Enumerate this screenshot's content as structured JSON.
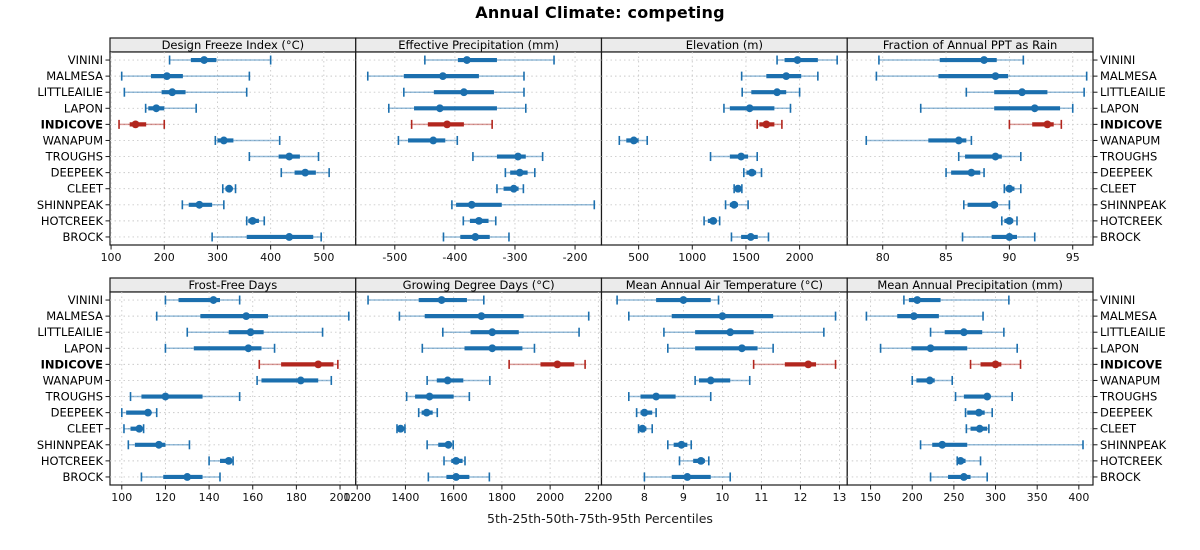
{
  "chart_data": {
    "type": "trellis-dotplot-percentiles",
    "title": "Annual Climate: competing",
    "caption": "5th-25th-50th-75th-95th Percentiles",
    "percentiles": [
      "5th",
      "25th",
      "50th",
      "75th",
      "95th"
    ],
    "legend_position": "none",
    "grid_layout": {
      "rows": 2,
      "cols": 4
    },
    "sites": [
      "VININI",
      "MALMESA",
      "LITTLEAILIE",
      "LAPON",
      "INDICOVE",
      "WANAPUM",
      "TROUGHS",
      "DEEPEEK",
      "CLEET",
      "SHINNPEAK",
      "HOTCREEK",
      "BROCK"
    ],
    "highlight_site": "INDICOVE",
    "colors": {
      "normal": "#1b6fae",
      "highlight": "#b2261e",
      "strip_bg": "#ebebeb",
      "border": "#1a1a1a",
      "grid": "#c9c9c9"
    },
    "panels": [
      {
        "title": "Design Freeze Index (°C)",
        "row": 0,
        "col": 0,
        "domain": [
          98,
          560
        ],
        "ticks": [
          100,
          200,
          300,
          400,
          500
        ],
        "values": [
          [
            210,
            250,
            275,
            298,
            400
          ],
          [
            120,
            175,
            205,
            235,
            360
          ],
          [
            125,
            195,
            215,
            240,
            355
          ],
          [
            165,
            170,
            185,
            200,
            260
          ],
          [
            115,
            135,
            146,
            166,
            200
          ],
          [
            296,
            300,
            312,
            330,
            417
          ],
          [
            360,
            415,
            435,
            455,
            490
          ],
          [
            420,
            445,
            465,
            485,
            510
          ],
          [
            310,
            315,
            322,
            328,
            334
          ],
          [
            234,
            246,
            266,
            290,
            312
          ],
          [
            355,
            358,
            366,
            378,
            388
          ],
          [
            290,
            355,
            435,
            480,
            495
          ]
        ]
      },
      {
        "title": "Effective Precipitation (mm)",
        "row": 0,
        "col": 1,
        "domain": [
          -565,
          -156
        ],
        "ticks": [
          -500,
          -400,
          -300,
          -200
        ],
        "values": [
          [
            -450,
            -395,
            -380,
            -330,
            -235
          ],
          [
            -545,
            -485,
            -420,
            -360,
            -285
          ],
          [
            -485,
            -435,
            -385,
            -335,
            -285
          ],
          [
            -510,
            -468,
            -425,
            -330,
            -282
          ],
          [
            -472,
            -445,
            -413,
            -385,
            -338
          ],
          [
            -494,
            -478,
            -436,
            -416,
            -396
          ],
          [
            -370,
            -330,
            -295,
            -282,
            -254
          ],
          [
            -316,
            -308,
            -292,
            -279,
            -267
          ],
          [
            -330,
            -319,
            -302,
            -294,
            -286
          ],
          [
            -405,
            -398,
            -372,
            -322,
            -168
          ],
          [
            -386,
            -375,
            -360,
            -344,
            -332
          ],
          [
            -419,
            -391,
            -366,
            -342,
            -310
          ]
        ]
      },
      {
        "title": "Elevation (m)",
        "row": 0,
        "col": 2,
        "domain": [
          154,
          2444
        ],
        "ticks": [
          500,
          1000,
          1500,
          2000
        ],
        "values": [
          [
            1790,
            1860,
            1980,
            2170,
            2350
          ],
          [
            1460,
            1690,
            1875,
            2015,
            2170
          ],
          [
            1465,
            1550,
            1790,
            1875,
            2000
          ],
          [
            1295,
            1350,
            1535,
            1765,
            1915
          ],
          [
            1605,
            1625,
            1690,
            1765,
            1835
          ],
          [
            320,
            385,
            455,
            500,
            580
          ],
          [
            1170,
            1350,
            1455,
            1520,
            1605
          ],
          [
            1480,
            1505,
            1555,
            1595,
            1645
          ],
          [
            1390,
            1402,
            1426,
            1450,
            1462
          ],
          [
            1310,
            1350,
            1390,
            1425,
            1520
          ],
          [
            1110,
            1145,
            1195,
            1215,
            1255
          ],
          [
            1365,
            1455,
            1545,
            1610,
            1710
          ]
        ]
      },
      {
        "title": "Fraction of Annual PPT as Rain",
        "row": 0,
        "col": 3,
        "domain": [
          77.2,
          96.6
        ],
        "ticks": [
          80,
          85,
          90,
          95
        ],
        "values": [
          [
            79.7,
            84.5,
            88,
            89,
            91.1
          ],
          [
            79.5,
            84.4,
            88.9,
            89.9,
            96.1
          ],
          [
            86.6,
            88.8,
            91,
            93,
            95.9
          ],
          [
            83,
            88.8,
            92,
            94,
            95
          ],
          [
            90,
            91.8,
            93,
            93.5,
            94.1
          ],
          [
            78.7,
            83.6,
            86,
            86.6,
            87
          ],
          [
            86,
            86.5,
            88.9,
            89.4,
            90.9
          ],
          [
            85,
            85.4,
            87,
            87.7,
            88
          ],
          [
            89.6,
            89.7,
            90,
            90.4,
            90.9
          ],
          [
            86.4,
            86.7,
            88.8,
            89.1,
            90
          ],
          [
            89.4,
            89.6,
            90,
            90.3,
            90.6
          ],
          [
            86.3,
            88.6,
            90,
            90.6,
            92
          ]
        ]
      },
      {
        "title": "Frost-Free Days",
        "row": 1,
        "col": 0,
        "domain": [
          94.6,
          207.2
        ],
        "ticks": [
          100,
          120,
          140,
          160,
          180,
          200
        ],
        "values": [
          [
            120,
            126,
            142,
            145,
            154
          ],
          [
            116,
            136,
            157,
            167,
            204
          ],
          [
            130,
            149,
            159,
            165,
            192
          ],
          [
            120,
            133,
            158,
            164,
            170
          ],
          [
            163,
            173,
            190,
            197,
            199
          ],
          [
            162,
            164,
            182,
            190,
            196
          ],
          [
            104,
            109,
            120,
            137,
            154
          ],
          [
            100,
            102,
            112,
            113,
            116
          ],
          [
            101,
            104,
            108,
            109,
            110
          ],
          [
            103,
            106,
            117,
            120,
            131
          ],
          [
            140,
            145,
            149,
            150,
            151
          ],
          [
            109,
            119,
            130,
            137,
            145
          ]
        ]
      },
      {
        "title": "Growing Degree Days (°C)",
        "row": 1,
        "col": 1,
        "domain": [
          1194,
          2213
        ],
        "ticks": [
          1200,
          1400,
          1600,
          1800,
          2000,
          2200
        ],
        "values": [
          [
            1245,
            1455,
            1550,
            1655,
            1725
          ],
          [
            1375,
            1480,
            1715,
            1890,
            2160
          ],
          [
            1555,
            1670,
            1760,
            1870,
            2120
          ],
          [
            1470,
            1645,
            1760,
            1885,
            1935
          ],
          [
            1830,
            1960,
            2030,
            2100,
            2145
          ],
          [
            1490,
            1530,
            1575,
            1640,
            1750
          ],
          [
            1405,
            1440,
            1500,
            1600,
            1665
          ],
          [
            1455,
            1467,
            1488,
            1513,
            1532
          ],
          [
            1365,
            1372,
            1380,
            1390,
            1398
          ],
          [
            1490,
            1536,
            1578,
            1588,
            1598
          ],
          [
            1560,
            1590,
            1610,
            1637,
            1647
          ],
          [
            1495,
            1570,
            1610,
            1665,
            1748
          ]
        ]
      },
      {
        "title": "Mean Annual Air Temperature (°C)",
        "row": 1,
        "col": 2,
        "domain": [
          6.9,
          13.2
        ],
        "ticks": [
          8,
          9,
          10,
          11,
          12,
          13
        ],
        "values": [
          [
            7.3,
            8.3,
            9.0,
            9.7,
            9.9
          ],
          [
            7.6,
            8.7,
            10.0,
            11.3,
            12.9
          ],
          [
            8.5,
            9.3,
            10.2,
            10.8,
            12.6
          ],
          [
            8.6,
            9.3,
            10.5,
            10.9,
            11.3
          ],
          [
            10.8,
            11.6,
            12.2,
            12.4,
            12.9
          ],
          [
            9.3,
            9.4,
            9.7,
            10.2,
            10.7
          ],
          [
            7.6,
            7.9,
            8.3,
            8.8,
            9.7
          ],
          [
            7.8,
            7.9,
            8.0,
            8.2,
            8.3
          ],
          [
            7.85,
            7.9,
            7.95,
            8.05,
            8.2
          ],
          [
            8.6,
            8.75,
            8.95,
            9.1,
            9.2
          ],
          [
            8.9,
            9.25,
            9.45,
            9.55,
            9.65
          ],
          [
            8.0,
            8.7,
            9.1,
            9.7,
            10.2
          ]
        ]
      },
      {
        "title": "Mean Annual Precipitation (mm)",
        "row": 1,
        "col": 3,
        "domain": [
          122,
          417
        ],
        "ticks": [
          150,
          200,
          250,
          300,
          350,
          400
        ],
        "values": [
          [
            190,
            196,
            206,
            234,
            316
          ],
          [
            145,
            182,
            202,
            232,
            285
          ],
          [
            222,
            239,
            262,
            284,
            310
          ],
          [
            162,
            199,
            222,
            266,
            326
          ],
          [
            270,
            282,
            300,
            307,
            330
          ],
          [
            200,
            205,
            221,
            227,
            248
          ],
          [
            252,
            262,
            290,
            292,
            320
          ],
          [
            264,
            266,
            280,
            287,
            296
          ],
          [
            265,
            270,
            281,
            290,
            292
          ],
          [
            210,
            224,
            236,
            266,
            405
          ],
          [
            254,
            255,
            258,
            264,
            282
          ],
          [
            222,
            243,
            262,
            270,
            290
          ]
        ]
      }
    ]
  }
}
